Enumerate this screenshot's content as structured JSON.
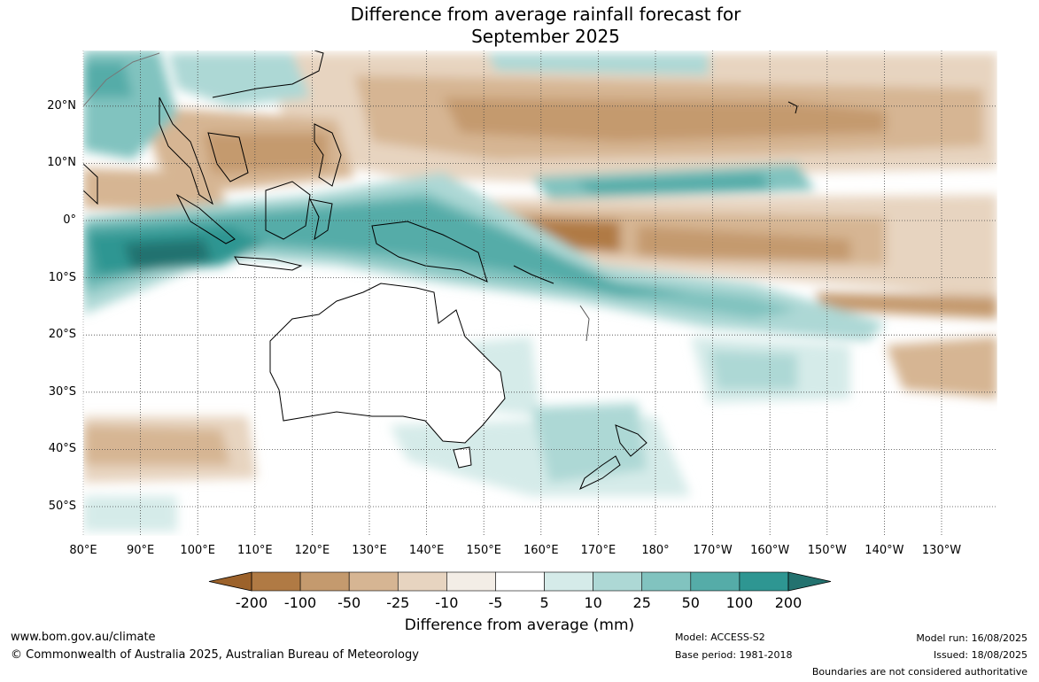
{
  "title_line1": "Difference from average rainfall forecast for",
  "title_line2": "September 2025",
  "lat_labels": [
    "20°N",
    "10°N",
    "0°",
    "10°S",
    "20°S",
    "30°S",
    "40°S",
    "50°S"
  ],
  "lon_labels": [
    "80°E",
    "90°E",
    "100°E",
    "110°E",
    "120°E",
    "130°E",
    "140°E",
    "150°E",
    "160°E",
    "170°E",
    "180°",
    "170°W",
    "160°W",
    "150°W",
    "140°W",
    "130°W"
  ],
  "colorbar": {
    "ticks": [
      "-200",
      "-100",
      "-50",
      "-25",
      "-10",
      "-5",
      "5",
      "10",
      "25",
      "50",
      "100",
      "200"
    ],
    "colors": [
      "#9c622b",
      "#b07a44",
      "#c49a6e",
      "#d6b593",
      "#e7d4c0",
      "#f3ede6",
      "#ffffff",
      "#d5ebe9",
      "#add8d5",
      "#81c3bf",
      "#55aca8",
      "#2e9692",
      "#23726f"
    ],
    "label": "Difference from average (mm)"
  },
  "footer": {
    "website": "www.bom.gov.au/climate",
    "copyright": "© Commonwealth of Australia 2025, Australian Bureau of Meteorology",
    "model": "Model: ACCESS-S2",
    "base_period": "Base period: 1981-2018",
    "model_run": "Model run: 16/08/2025",
    "issued": "Issued: 18/08/2025",
    "disclaimer": "Boundaries are not considered authoritative"
  }
}
